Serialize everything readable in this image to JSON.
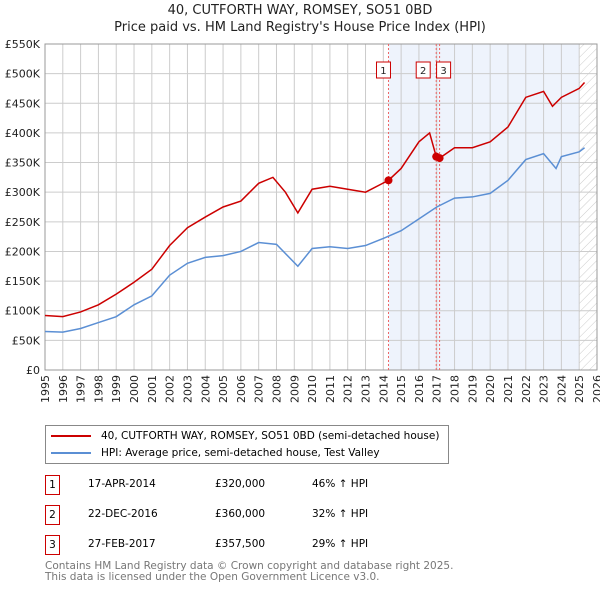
{
  "title": "40, CUTFORTH WAY, ROMSEY, SO51 0BD",
  "subtitle": "Price paid vs. HM Land Registry's House Price Index (HPI)",
  "chart_data": {
    "type": "line",
    "xlim": [
      1995,
      2026
    ],
    "ylim": [
      0,
      550000
    ],
    "xticks": [
      "1995",
      "1996",
      "1997",
      "1998",
      "1999",
      "2000",
      "2001",
      "2002",
      "2003",
      "2004",
      "2005",
      "2006",
      "2007",
      "2008",
      "2009",
      "2010",
      "2011",
      "2012",
      "2013",
      "2014",
      "2015",
      "2016",
      "2017",
      "2018",
      "2019",
      "2020",
      "2021",
      "2022",
      "2023",
      "2024",
      "2025",
      "2026"
    ],
    "yticks": [
      "£0",
      "£50K",
      "£100K",
      "£150K",
      "£200K",
      "£250K",
      "£300K",
      "£350K",
      "£400K",
      "£450K",
      "£500K",
      "£550K"
    ],
    "series": [
      {
        "name": "40, CUTFORTH WAY, ROMSEY, SO51 0BD (semi-detached house)",
        "color": "#cc0000",
        "x": [
          1995,
          1996,
          1997,
          1998,
          1999,
          2000,
          2001,
          2002,
          2003,
          2004,
          2005,
          2006,
          2007,
          2007.8,
          2008.5,
          2009.2,
          2010,
          2011,
          2012,
          2013,
          2014.29,
          2015,
          2016,
          2016.6,
          2016.97,
          2017.16,
          2018,
          2019,
          2020,
          2021,
          2022,
          2023,
          2023.5,
          2024,
          2025,
          2025.3
        ],
        "y": [
          92000,
          90000,
          98000,
          110000,
          128000,
          148000,
          170000,
          210000,
          240000,
          258000,
          275000,
          285000,
          315000,
          325000,
          300000,
          265000,
          305000,
          310000,
          305000,
          300000,
          320000,
          340000,
          385000,
          400000,
          360000,
          357500,
          375000,
          375000,
          385000,
          410000,
          460000,
          470000,
          445000,
          460000,
          475000,
          485000
        ]
      },
      {
        "name": "HPI: Average price, semi-detached house, Test Valley",
        "color": "#5b8fd4",
        "x": [
          1995,
          1996,
          1997,
          1998,
          1999,
          2000,
          2001,
          2002,
          2003,
          2004,
          2005,
          2006,
          2007,
          2008,
          2009.2,
          2010,
          2011,
          2012,
          2013,
          2014,
          2015,
          2016,
          2017,
          2018,
          2019,
          2020,
          2021,
          2022,
          2023,
          2023.7,
          2024,
          2025,
          2025.3
        ],
        "y": [
          65000,
          64000,
          70000,
          80000,
          90000,
          110000,
          125000,
          160000,
          180000,
          190000,
          193000,
          200000,
          215000,
          212000,
          175000,
          205000,
          208000,
          205000,
          210000,
          222000,
          235000,
          255000,
          275000,
          290000,
          292000,
          298000,
          320000,
          355000,
          365000,
          340000,
          360000,
          368000,
          375000
        ]
      }
    ],
    "sales": [
      {
        "id": "1",
        "x": 2014.29,
        "y": 320000
      },
      {
        "id": "2",
        "x": 2016.97,
        "y": 360000
      },
      {
        "id": "3",
        "x": 2017.16,
        "y": 357500
      }
    ],
    "shaded_from": 2014.29,
    "hatched_from": 2025.0
  },
  "legend": [
    "40, CUTFORTH WAY, ROMSEY, SO51 0BD (semi-detached house)",
    "HPI: Average price, semi-detached house, Test Valley"
  ],
  "table": [
    {
      "id": "1",
      "date": "17-APR-2014",
      "price": "£320,000",
      "hpi": "46% ↑ HPI"
    },
    {
      "id": "2",
      "date": "22-DEC-2016",
      "price": "£360,000",
      "hpi": "32% ↑ HPI"
    },
    {
      "id": "3",
      "date": "27-FEB-2017",
      "price": "£357,500",
      "hpi": "29% ↑ HPI"
    }
  ],
  "footer": [
    "Contains HM Land Registry data © Crown copyright and database right 2025.",
    "This data is licensed under the Open Government Licence v3.0."
  ]
}
